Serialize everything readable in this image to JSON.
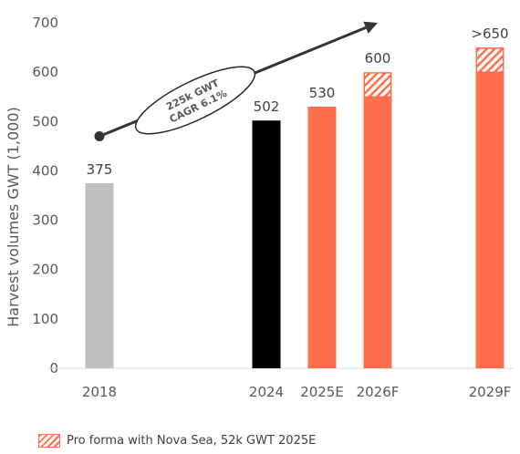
{
  "chart_data": {
    "type": "bar",
    "categories": [
      "2018",
      "2024",
      "2025E",
      "2026F",
      "2029F"
    ],
    "series": [
      {
        "values": [
          375,
          502,
          530,
          550,
          600
        ]
      },
      {
        "name": "Pro forma with Nova Sea, 52k GWT 2025E",
        "values": [
          0,
          0,
          0,
          50,
          50
        ]
      }
    ],
    "data_labels": [
      "375",
      "502",
      "530",
      "600",
      ">650"
    ],
    "bar_colors": [
      "#bfbfbf",
      "#000000",
      "#ff6f4d",
      "#ff6f4d",
      "#ff6f4d"
    ],
    "hatch_color": "#ff6f4d",
    "ylabel": "Harvest volumes GWT (1,000)",
    "ylim": [
      0,
      700
    ],
    "yticks": [
      "0",
      "100",
      "200",
      "300",
      "400",
      "500",
      "600",
      "700"
    ],
    "grid": false,
    "legend_position": "bottom-left",
    "annotation": {
      "lines": [
        "225k GWT",
        "CAGR 6.1%"
      ],
      "arrow_from": [
        "2018",
        470
      ],
      "arrow_to": [
        "2026F",
        700
      ]
    }
  }
}
